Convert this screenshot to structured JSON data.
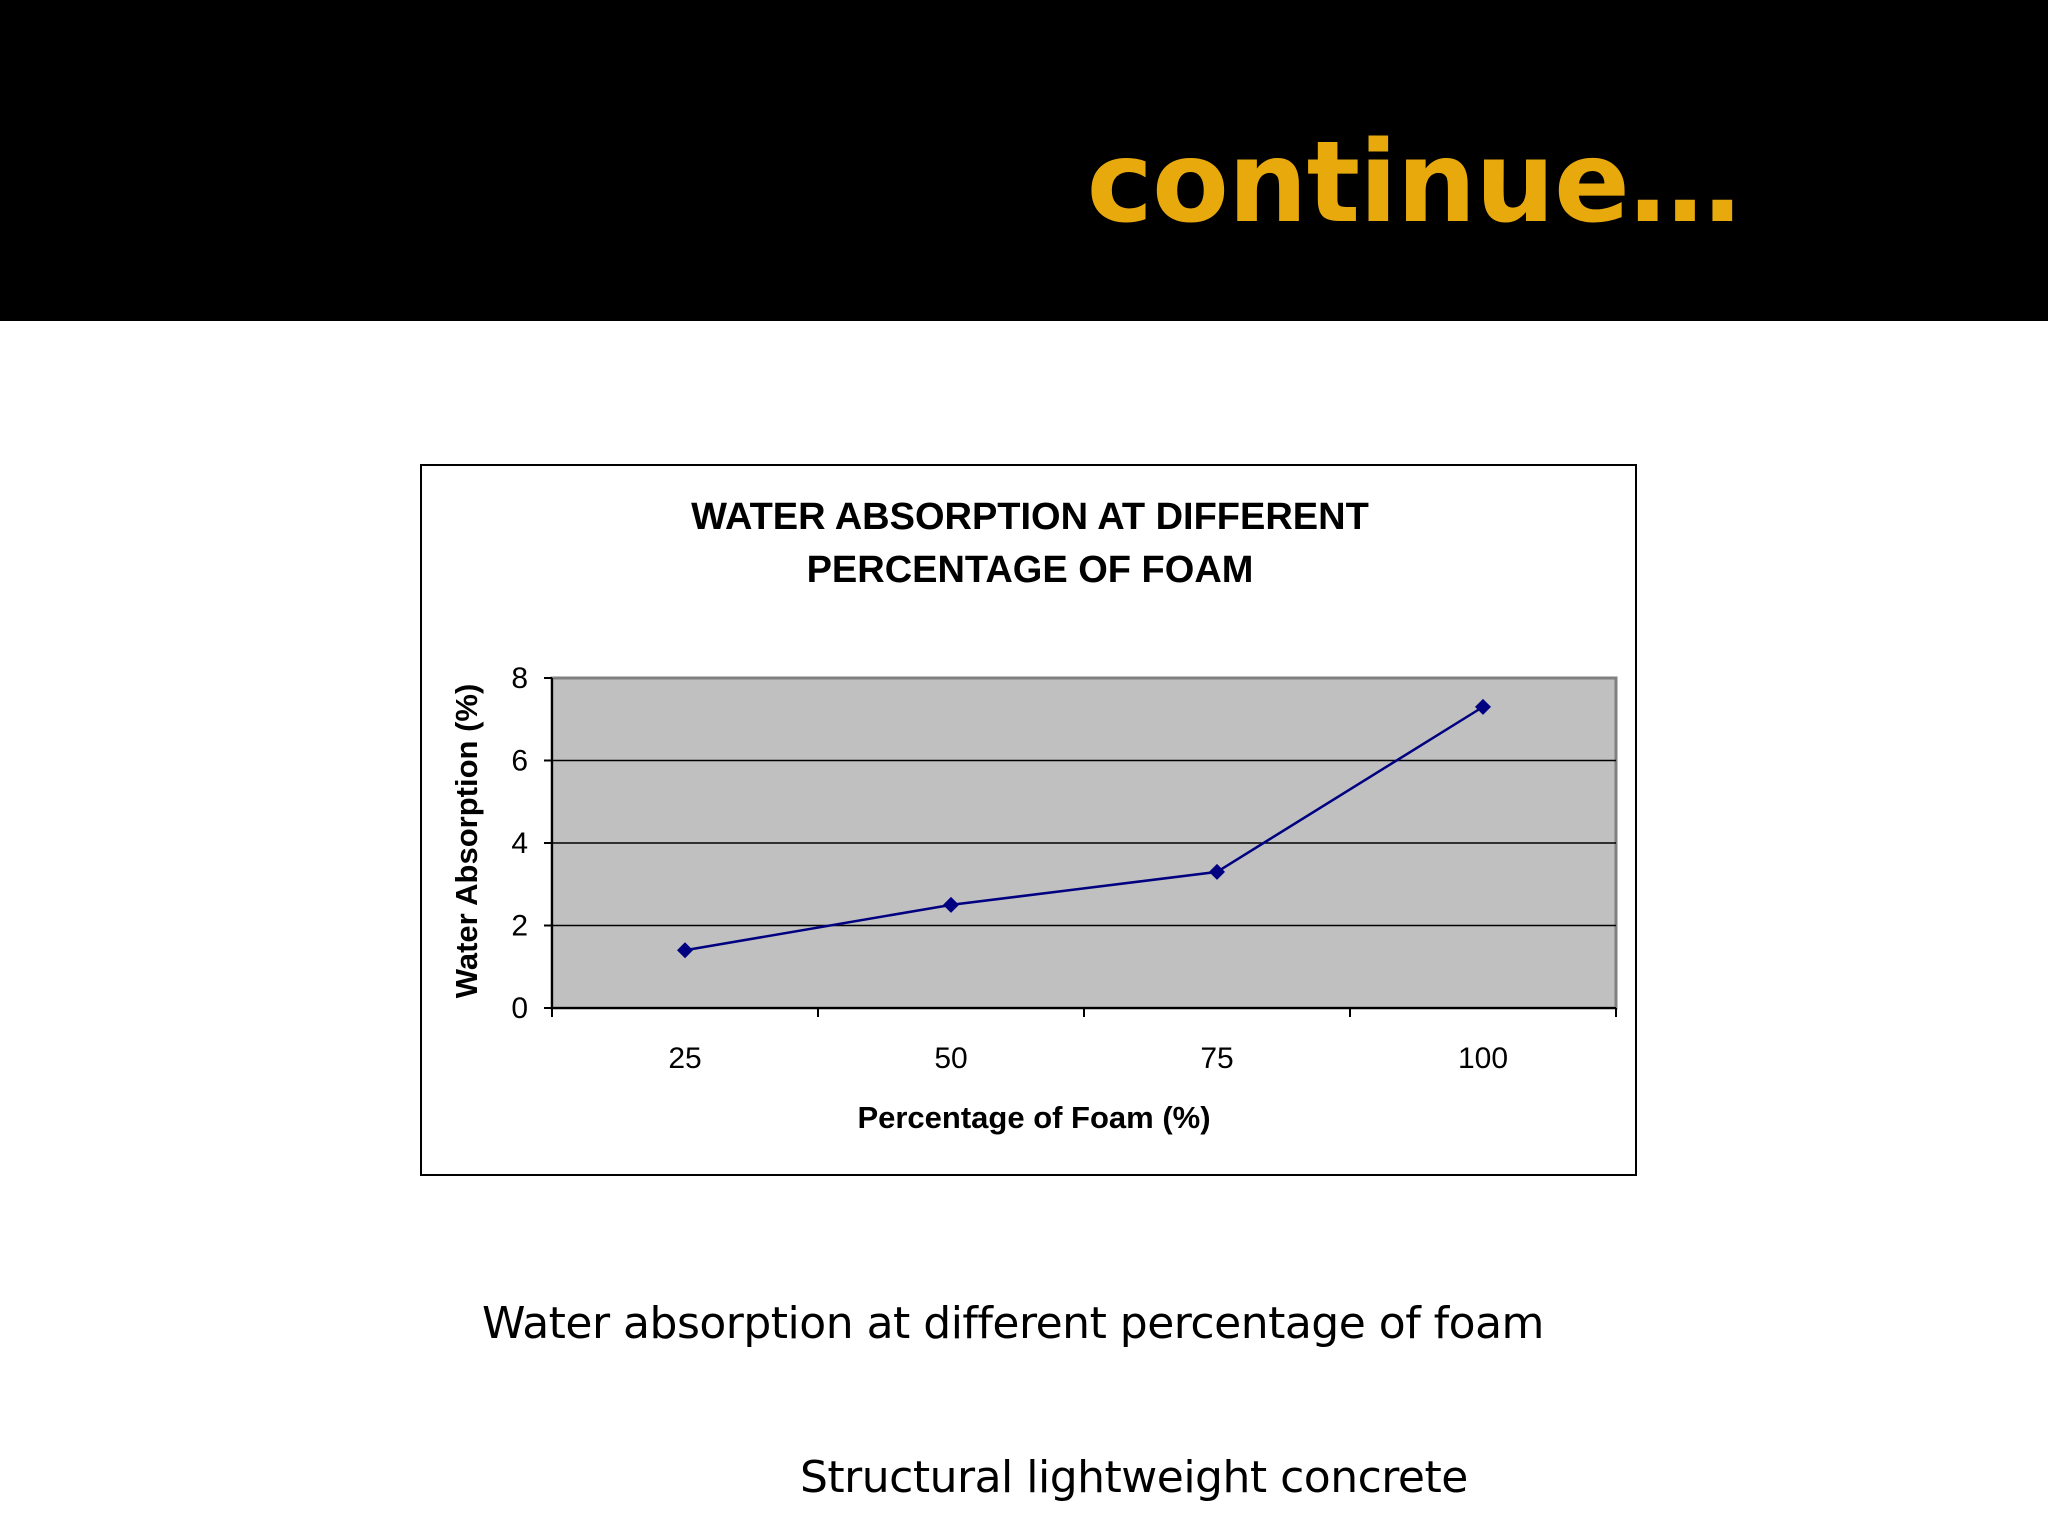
{
  "slide": {
    "title": "continue…",
    "caption": "Water absorption  at  different percentage of foam",
    "subcaption": "Structural lightweight concrete"
  },
  "colors": {
    "header_band": "#000000",
    "title": "#e8a90c",
    "plot_area": "#c0c0c0",
    "series_line": "#000080"
  },
  "chart_data": {
    "type": "line",
    "title_lines": [
      "WATER ABSORPTION AT DIFFERENT",
      "PERCENTAGE OF FOAM"
    ],
    "xlabel": "Percentage of Foam (%)",
    "ylabel": "Water Absorption (%)",
    "categories": [
      "25",
      "50",
      "75",
      "100"
    ],
    "series": [
      {
        "values": [
          1.4,
          2.5,
          3.3,
          7.3
        ]
      }
    ],
    "ylim": [
      0,
      8
    ],
    "yticks": [
      0,
      2,
      4,
      6,
      8
    ],
    "grid": true,
    "legend": "none"
  }
}
